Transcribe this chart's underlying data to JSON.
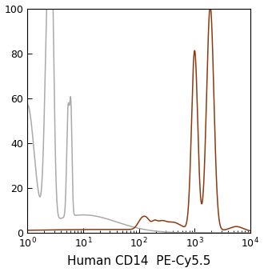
{
  "xlabel": "Human CD14  PE-Cy5.5",
  "xlim_log": [
    1,
    10000
  ],
  "ylim": [
    0,
    100
  ],
  "yticks": [
    0,
    20,
    40,
    60,
    80,
    100
  ],
  "gray_color": "#aaaaaa",
  "brown_color": "#8B3A10",
  "background_color": "#ffffff",
  "linewidth": 1.1
}
